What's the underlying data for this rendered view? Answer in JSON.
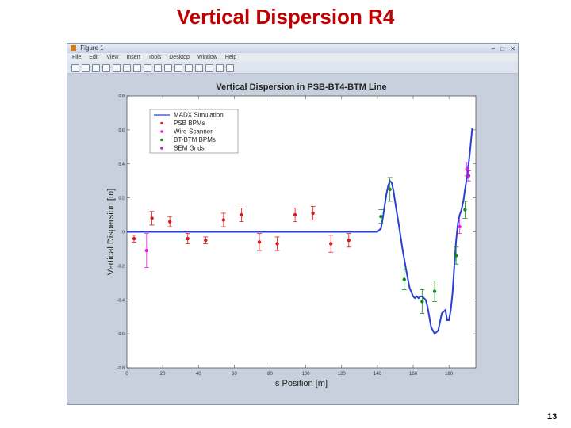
{
  "slide": {
    "title": "Vertical Dispersion R4",
    "page_number": "13"
  },
  "window": {
    "title": "Figure 1",
    "menu": [
      "File",
      "Edit",
      "View",
      "Insert",
      "Tools",
      "Desktop",
      "Window",
      "Help"
    ],
    "toolbar_icons": [
      "new-icon",
      "open-icon",
      "save-icon",
      "print-icon",
      "pointer-icon",
      "zoom-in-icon",
      "zoom-out-icon",
      "pan-icon",
      "rotate-icon",
      "data-cursor-icon",
      "brush-icon",
      "link-icon",
      "colorbar-icon",
      "legend-icon",
      "hide-tools-icon",
      "show-tools-icon"
    ],
    "buttons": {
      "minimize": "–",
      "maximize": "□",
      "close": "✕"
    }
  },
  "chart_data": {
    "type": "line",
    "title": "Vertical Dispersion in PSB-BT4-BTM Line",
    "xlabel": "s Position [m]",
    "ylabel": "Vertical Dispersion [m]",
    "xlim": [
      0,
      195
    ],
    "ylim": [
      -0.8,
      0.8
    ],
    "xticks": [
      0,
      20,
      40,
      60,
      80,
      100,
      120,
      140,
      160,
      180
    ],
    "yticks": [
      -0.8,
      -0.6,
      -0.4,
      -0.2,
      0,
      0.2,
      0.4,
      0.6,
      0.8
    ],
    "ytick_labels": [
      "-0.8",
      "-0.6",
      "-0.4",
      "-0.2",
      "0",
      "0.2",
      "0.4",
      "0.6",
      "0.8"
    ],
    "grid": false,
    "legend": {
      "placement": "top-left"
    },
    "colors": {
      "madx": "#2a3fd6",
      "psb": "#e0191c",
      "wire": "#e81ee8",
      "bt": "#128a1e",
      "sem": "#b21ec8"
    },
    "series": [
      {
        "name": "MADX Simulation",
        "kind": "line",
        "x": [
          0,
          140,
          142,
          143,
          144,
          145,
          146,
          147,
          148,
          149,
          150,
          152,
          154,
          156,
          158,
          160,
          161,
          162,
          163,
          164,
          165,
          166,
          167,
          168,
          169,
          170,
          172,
          174,
          176,
          178,
          179,
          180,
          181,
          182,
          183,
          184,
          185,
          186,
          187,
          188,
          189,
          190,
          191,
          192,
          193
        ],
        "y": [
          0,
          0,
          0.02,
          0.08,
          0.15,
          0.22,
          0.27,
          0.3,
          0.29,
          0.24,
          0.17,
          0.04,
          -0.1,
          -0.22,
          -0.33,
          -0.38,
          -0.39,
          -0.38,
          -0.39,
          -0.38,
          -0.38,
          -0.39,
          -0.4,
          -0.44,
          -0.5,
          -0.56,
          -0.6,
          -0.58,
          -0.48,
          -0.46,
          -0.52,
          -0.52,
          -0.46,
          -0.36,
          -0.2,
          -0.05,
          0.05,
          0.1,
          0.13,
          0.18,
          0.25,
          0.32,
          0.4,
          0.5,
          0.61
        ]
      },
      {
        "name": "PSB BPMs",
        "kind": "points",
        "x": [
          4,
          14,
          24,
          34,
          44,
          54,
          64,
          74,
          84,
          94,
          104,
          114,
          124
        ],
        "y": [
          -0.04,
          0.08,
          0.06,
          -0.04,
          -0.05,
          0.07,
          0.1,
          -0.06,
          -0.07,
          0.1,
          0.11,
          -0.07,
          -0.05
        ],
        "err": [
          0.02,
          0.04,
          0.03,
          0.03,
          0.02,
          0.04,
          0.04,
          0.05,
          0.04,
          0.04,
          0.04,
          0.05,
          0.04
        ]
      },
      {
        "name": "Wire-Scanner",
        "kind": "points",
        "x": [
          11,
          186,
          190
        ],
        "y": [
          -0.11,
          0.03,
          0.37
        ],
        "err": [
          0.1,
          0.04,
          0.04
        ]
      },
      {
        "name": "BT-BTM BPMs",
        "kind": "points",
        "x": [
          142,
          147,
          155,
          165,
          172,
          184,
          189
        ],
        "y": [
          0.09,
          0.25,
          -0.28,
          -0.41,
          -0.35,
          -0.14,
          0.13
        ],
        "err": [
          0.04,
          0.07,
          0.06,
          0.07,
          0.06,
          0.05,
          0.05
        ]
      },
      {
        "name": "SEM Grids",
        "kind": "points",
        "x": [
          191
        ],
        "y": [
          0.33
        ],
        "err": [
          0.03
        ]
      }
    ]
  }
}
